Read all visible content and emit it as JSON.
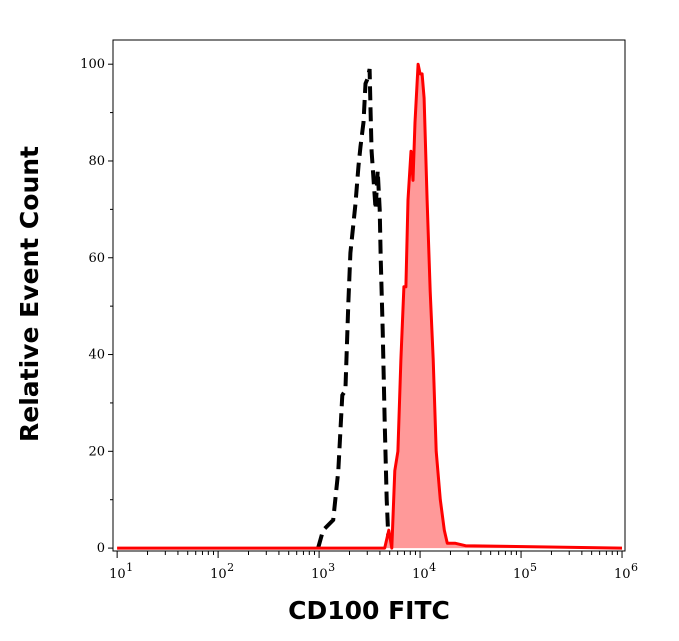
{
  "chart_data": {
    "type": "area",
    "title": "",
    "xlabel": "CD100 FITC",
    "ylabel": "Relative Event Count",
    "xscale": "log",
    "xlim": [
      9.1,
      1070000
    ],
    "ylim": [
      -0.6,
      105
    ],
    "grid": false,
    "x_ticks": [
      {
        "base": "10",
        "exp": "1",
        "value": 10
      },
      {
        "base": "10",
        "exp": "2",
        "value": 100
      },
      {
        "base": "10",
        "exp": "3",
        "value": 1000
      },
      {
        "base": "10",
        "exp": "4",
        "value": 10000
      },
      {
        "base": "10",
        "exp": "5",
        "value": 100000
      },
      {
        "base": "10",
        "exp": "6",
        "value": 1000000
      }
    ],
    "y_ticks": [
      "0",
      "20",
      "40",
      "60",
      "80",
      "100"
    ],
    "series": [
      {
        "style": "dashed-line",
        "color": "#000000",
        "x": [
          977,
          1096,
          1380,
          1549,
          1698,
          1820,
          1950,
          2042,
          2291,
          2455,
          2570,
          2754,
          2884,
          3020,
          3162,
          3236,
          3311,
          3467,
          3631,
          3802,
          3981,
          4074,
          4266,
          4467,
          4677,
          4898
        ],
        "y": [
          0,
          3.7,
          5.8,
          16,
          31.6,
          32.6,
          51,
          61,
          71,
          79,
          83,
          88,
          96,
          97,
          99,
          90,
          82,
          76,
          70,
          78,
          70,
          60,
          45,
          26,
          10,
          0
        ]
      },
      {
        "style": "filled",
        "color": "#ff0000",
        "fill": "#ff9999",
        "x": [
          10,
          4467,
          4898,
          5248,
          5623,
          6026,
          6457,
          6918,
          7244,
          7586,
          8128,
          8511,
          8913,
          9550,
          10000,
          10471,
          10965,
          11749,
          12589,
          13490,
          14454,
          15849,
          17378,
          18621,
          22387,
          28184,
          1000000
        ],
        "y": [
          0,
          0,
          3.7,
          0,
          16,
          20,
          39,
          54,
          54,
          72,
          82,
          76,
          88,
          100,
          98,
          98,
          93,
          72,
          53,
          39,
          20,
          10,
          3.7,
          1,
          1,
          0.5,
          0
        ]
      }
    ]
  }
}
